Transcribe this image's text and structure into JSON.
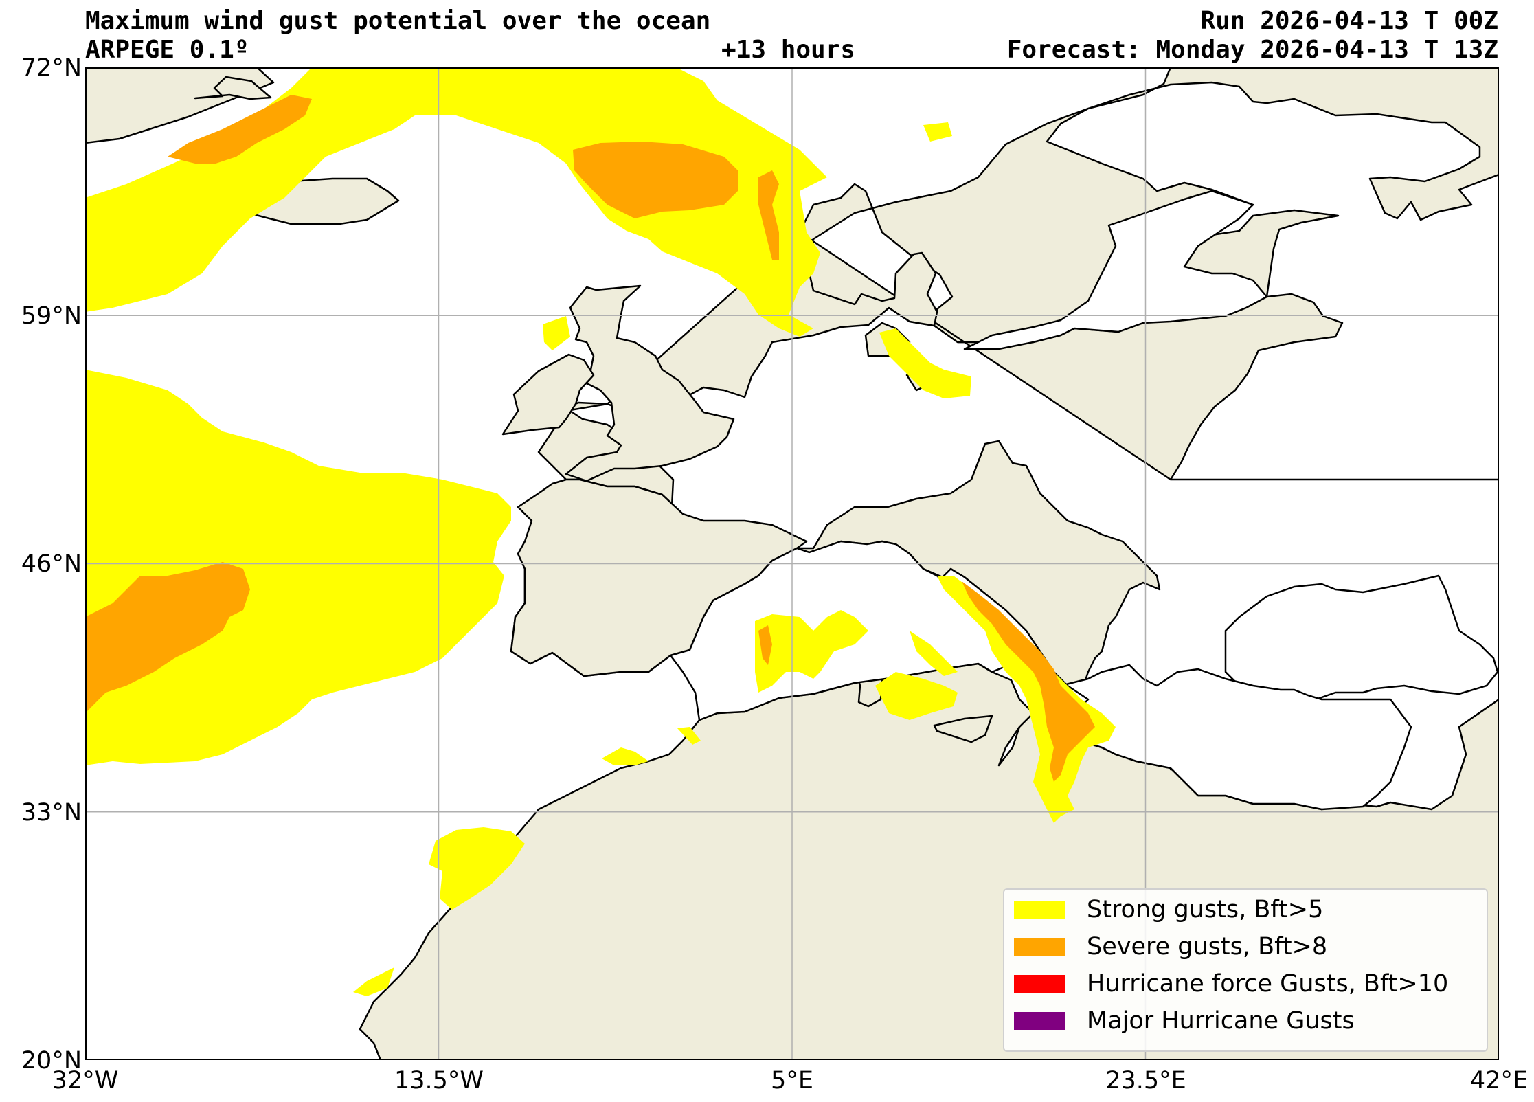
{
  "title": {
    "main": "Maximum wind gust potential over the ocean",
    "model": "ARPEGE 0.1º",
    "lead_time": "+13 hours",
    "run": "Run 2026-04-13 T 00Z",
    "forecast": "Forecast: Monday 2026-04-13 T 13Z"
  },
  "axes": {
    "lat_labels": [
      "72°N",
      "59°N",
      "46°N",
      "33°N",
      "20°N"
    ],
    "lon_labels": [
      "32°W",
      "13.5°W",
      "5°E",
      "23.5°E",
      "42°E"
    ]
  },
  "legend": {
    "items": [
      {
        "label": "Strong gusts, Bft>5",
        "color": "#ffff00"
      },
      {
        "label": "Severe gusts, Bft>8",
        "color": "#ffa500"
      },
      {
        "label": "Hurricane force Gusts, Bft>10",
        "color": "#ff0000"
      },
      {
        "label": "Major Hurricane Gusts",
        "color": "#800080"
      }
    ]
  },
  "colors": {
    "land": "#efeddb",
    "ocean": "#ffffff",
    "strong": "#ffff00",
    "severe": "#ffa500",
    "grid": "#b0b0b0"
  }
}
